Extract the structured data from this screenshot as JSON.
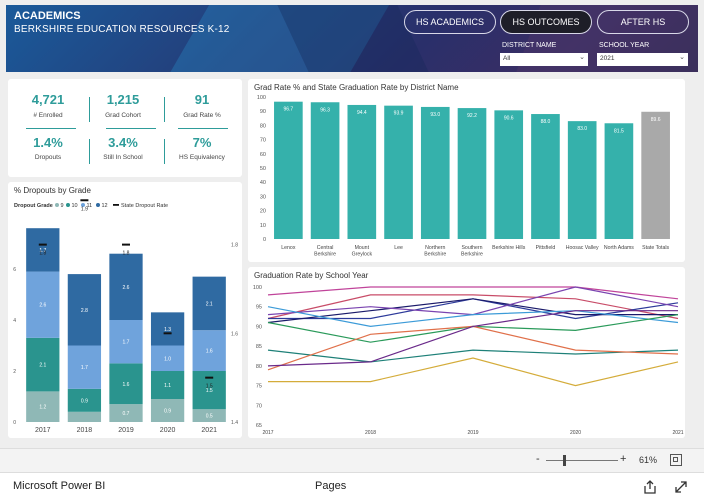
{
  "header": {
    "title": "ACADEMICS",
    "subtitle": "BERKSHIRE EDUCATION RESOURCES K-12",
    "nav": [
      "HS ACADEMICS",
      "HS OUTCOMES",
      "AFTER HS"
    ],
    "active_nav": "HS OUTCOMES",
    "district_label": "DISTRICT NAME",
    "district_value": "All",
    "year_label": "SCHOOL YEAR",
    "year_value": "2021"
  },
  "kpis": [
    {
      "value": "4,721",
      "label": "# Enrolled"
    },
    {
      "value": "1,215",
      "label": "Grad Cohort"
    },
    {
      "value": "91",
      "label": "Grad Rate %"
    },
    {
      "value": "1.4%",
      "label": "Dropouts"
    },
    {
      "value": "3.4%",
      "label": "Still In School"
    },
    {
      "value": "7%",
      "label": "HS Equivalency"
    }
  ],
  "chart_data": [
    {
      "type": "bar",
      "title": "Grad Rate % and State Graduation Rate by District Name",
      "categories": [
        "Lenox",
        "Central Berkshire",
        "Mount Greylock",
        "Lee",
        "Northern Berkshire",
        "Southern Berkshire",
        "Berkshire Hills",
        "Pittsfield",
        "Hoosac Valley",
        "North Adams",
        "State Totals"
      ],
      "category_lines": [
        [
          "Lenox"
        ],
        [
          "Central",
          "Berkshire"
        ],
        [
          "Mount",
          "Greylock"
        ],
        [
          "Lee"
        ],
        [
          "Northern",
          "Berkshire"
        ],
        [
          "Southern",
          "Berkshire"
        ],
        [
          "Berkshire Hills"
        ],
        [
          "Pittsfield"
        ],
        [
          "Hoosac Valley"
        ],
        [
          "North Adams"
        ],
        [
          "State Totals"
        ]
      ],
      "values": [
        96.7,
        96.3,
        94.4,
        93.9,
        93.0,
        92.2,
        90.6,
        88.0,
        83.0,
        81.5,
        89.6
      ],
      "ylim": [
        0,
        100
      ],
      "yticks": [
        0,
        10,
        20,
        30,
        40,
        50,
        60,
        70,
        80,
        90,
        100
      ],
      "colors": {
        "district": "#35b1ab",
        "state": "#a9a9a9"
      }
    },
    {
      "type": "bar",
      "stacked": true,
      "title": "% Dropouts by Grade",
      "legend_title": "Dropout Grade",
      "legend": [
        "9",
        "10",
        "11",
        "12"
      ],
      "state_legend": "State Dropout Rate",
      "categories": [
        "2017",
        "2018",
        "2019",
        "2020",
        "2021"
      ],
      "series": [
        {
          "name": "9",
          "color": "#8fb8b6",
          "values": [
            1.2,
            0.4,
            0.7,
            0.9,
            0.5
          ]
        },
        {
          "name": "10",
          "color": "#2a948e",
          "values": [
            2.1,
            0.9,
            1.6,
            1.1,
            1.5
          ]
        },
        {
          "name": "11",
          "color": "#6fa3dc",
          "values": [
            2.6,
            1.7,
            1.7,
            1.0,
            1.6
          ]
        },
        {
          "name": "12",
          "color": "#2f6aa2",
          "values": [
            1.7,
            2.8,
            2.6,
            1.3,
            2.1
          ]
        }
      ],
      "segment_labels": [
        [
          "1.2",
          "2.1",
          "2.6",
          "1.7"
        ],
        [
          "",
          "0.9",
          "1.7",
          "2.8"
        ],
        [
          "0.7",
          "1.6",
          "1.7",
          "2.6"
        ],
        [
          "0.9",
          "1.1",
          "1.0",
          "1.3"
        ],
        [
          "0.5",
          "1.5",
          "1.6",
          "2.1"
        ]
      ],
      "state_rate": [
        1.8,
        1.9,
        1.8,
        1.6,
        1.5
      ],
      "state_rate_labels": [
        "1.8",
        "1.9",
        "1.8",
        "",
        "1.5"
      ],
      "ylim": [
        0,
        8
      ],
      "yticks_left": [
        0,
        2,
        4,
        6
      ],
      "yticks_right": [
        1.4,
        1.6,
        1.8
      ],
      "y2lim": [
        1.4,
        1.86
      ]
    },
    {
      "type": "line",
      "title": "Graduation Rate by School Year",
      "x": [
        "2017",
        "2018",
        "2019",
        "2020",
        "2021"
      ],
      "ylim": [
        65,
        100
      ],
      "yticks": [
        65,
        70,
        75,
        80,
        85,
        90,
        95,
        100
      ],
      "series": [
        {
          "color": "#c0449a",
          "values": [
            98,
            100,
            100,
            100,
            97
          ]
        },
        {
          "color": "#c84c68",
          "values": [
            92,
            98,
            98,
            97,
            92
          ]
        },
        {
          "color": "#2d3a9a",
          "values": [
            92,
            92,
            97,
            92,
            96
          ]
        },
        {
          "color": "#1a1a6a",
          "values": [
            91,
            94,
            97,
            93,
            93
          ]
        },
        {
          "color": "#7a44b0",
          "values": [
            93,
            95,
            93,
            100,
            95
          ]
        },
        {
          "color": "#3c9bd8",
          "values": [
            95,
            90,
            93,
            94,
            91
          ]
        },
        {
          "color": "#2a9a5a",
          "values": [
            91,
            86,
            90,
            89,
            93
          ]
        },
        {
          "color": "#1e8078",
          "values": [
            84,
            81,
            84,
            83,
            84
          ]
        },
        {
          "color": "#e0704a",
          "values": [
            79,
            88,
            90,
            84,
            83
          ]
        },
        {
          "color": "#6a2a8a",
          "values": [
            80,
            81,
            90,
            94,
            94
          ]
        },
        {
          "color": "#d4ac3a",
          "values": [
            76,
            76,
            82,
            75,
            81
          ]
        }
      ]
    }
  ],
  "statusbar": {
    "minus": "-",
    "plus": "+",
    "zoom": "61%"
  },
  "footer": {
    "brand": "Microsoft Power BI",
    "pages": "Pages"
  }
}
